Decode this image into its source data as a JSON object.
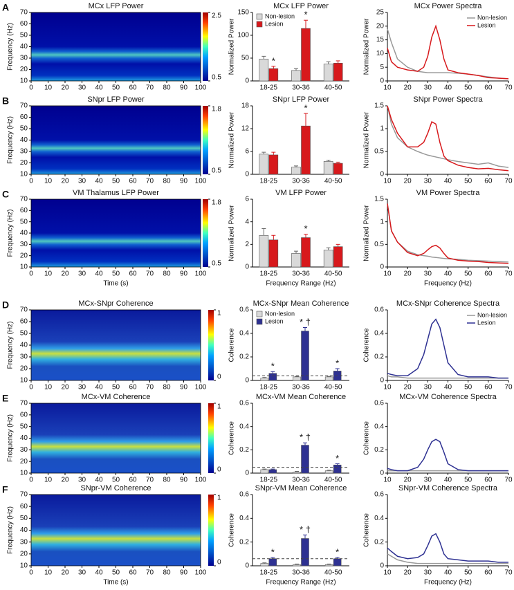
{
  "chart_data": [
    {
      "type": "heatmap",
      "panel_label": "A",
      "title": "MCx LFP Power",
      "ylabel": "Frequency (Hz)",
      "xlim": [
        0,
        100
      ],
      "xticks": [
        0,
        10,
        20,
        30,
        40,
        50,
        60,
        70,
        80,
        90,
        100
      ],
      "ylim": [
        10,
        70
      ],
      "yticks": [
        10,
        20,
        30,
        40,
        50,
        60,
        70
      ],
      "colorbar": {
        "lim": [
          0.5,
          2.5
        ],
        "ticks": [
          0.5,
          2.5
        ]
      }
    },
    {
      "type": "bar",
      "title": "MCx LFP Power",
      "ylabel": "Normalized Power",
      "categories": [
        "18-25",
        "30-36",
        "40-50"
      ],
      "series": [
        {
          "name": "Non-lesion",
          "color": "#d9d9d9",
          "values": [
            48,
            23,
            37
          ],
          "errors": [
            6,
            4,
            5
          ]
        },
        {
          "name": "Lesion",
          "color": "#d7191c",
          "values": [
            27,
            115,
            39
          ],
          "errors": [
            5,
            18,
            5
          ]
        }
      ],
      "ylim": [
        0,
        150
      ],
      "yticks": [
        0,
        50,
        100,
        150
      ],
      "annotations": [
        {
          "at": 0,
          "text": "*"
        },
        {
          "at": 1,
          "text": "*"
        }
      ],
      "legend": "upper left"
    },
    {
      "type": "line",
      "title": "MCx Power Spectra",
      "ylabel": "Normalized Power",
      "x": [
        10,
        12,
        15,
        20,
        25,
        28,
        30,
        32,
        34,
        36,
        38,
        40,
        45,
        50,
        55,
        60,
        65,
        70
      ],
      "series": [
        {
          "name": "Non-lesion",
          "color": "#999999",
          "values": [
            19,
            14,
            8,
            5,
            3.5,
            3.2,
            3,
            3,
            3,
            3,
            3,
            3,
            2.8,
            2.5,
            2,
            1.5,
            1,
            0.8
          ]
        },
        {
          "name": "Lesion",
          "color": "#d7191c",
          "values": [
            12,
            7,
            5,
            4,
            3.5,
            5,
            9,
            16,
            20,
            15,
            8,
            4,
            3,
            2.5,
            2,
            1.2,
            1,
            0.8
          ]
        }
      ],
      "xlim": [
        10,
        70
      ],
      "xticks": [
        10,
        20,
        30,
        40,
        50,
        60,
        70
      ],
      "ylim": [
        0,
        25
      ],
      "yticks": [
        0,
        5,
        10,
        15,
        20,
        25
      ],
      "legend": "upper right"
    },
    {
      "type": "heatmap",
      "panel_label": "B",
      "title": "SNpr LFP Power",
      "ylabel": "Frequency (Hz)",
      "xlim": [
        0,
        100
      ],
      "xticks": [
        0,
        10,
        20,
        30,
        40,
        50,
        60,
        70,
        80,
        90,
        100
      ],
      "ylim": [
        10,
        70
      ],
      "yticks": [
        10,
        20,
        30,
        40,
        50,
        60,
        70
      ],
      "colorbar": {
        "lim": [
          0.5,
          1.8
        ],
        "ticks": [
          0.5,
          1.8
        ]
      }
    },
    {
      "type": "bar",
      "title": "SNpr LFP Power",
      "ylabel": "Normalized Power",
      "categories": [
        "18-25",
        "30-36",
        "40-50"
      ],
      "series": [
        {
          "color": "#d9d9d9",
          "values": [
            5.3,
            1.9,
            3.4
          ],
          "errors": [
            0.5,
            0.3,
            0.3
          ]
        },
        {
          "color": "#d7191c",
          "values": [
            5.1,
            12.7,
            2.9
          ],
          "errors": [
            0.7,
            3.3,
            0.3
          ]
        }
      ],
      "ylim": [
        0,
        18
      ],
      "yticks": [
        0,
        6,
        12,
        18
      ],
      "annotations": [
        {
          "at": 1,
          "text": "*"
        }
      ]
    },
    {
      "type": "line",
      "title": "SNpr Power Spectra",
      "ylabel": "Normalized Power",
      "x": [
        10,
        12,
        15,
        20,
        25,
        28,
        30,
        32,
        34,
        36,
        38,
        40,
        45,
        50,
        55,
        60,
        65,
        70
      ],
      "series": [
        {
          "color": "#999999",
          "values": [
            1.5,
            1.1,
            0.8,
            0.6,
            0.5,
            0.45,
            0.42,
            0.4,
            0.38,
            0.36,
            0.34,
            0.32,
            0.28,
            0.25,
            0.22,
            0.25,
            0.18,
            0.15
          ]
        },
        {
          "color": "#d7191c",
          "values": [
            1.5,
            1.2,
            0.9,
            0.6,
            0.6,
            0.7,
            0.9,
            1.15,
            1.1,
            0.7,
            0.4,
            0.3,
            0.2,
            0.15,
            0.12,
            0.13,
            0.1,
            0.08
          ]
        }
      ],
      "xlim": [
        10,
        70
      ],
      "xticks": [
        10,
        20,
        30,
        40,
        50,
        60,
        70
      ],
      "ylim": [
        0,
        1.5
      ],
      "yticks": [
        0,
        0.5,
        1,
        1.5
      ]
    },
    {
      "type": "heatmap",
      "panel_label": "C",
      "title": "VM Thalamus LFP Power",
      "ylabel": "Frequency (Hz)",
      "xlabel": "Time (s)",
      "xlim": [
        0,
        100
      ],
      "xticks": [
        0,
        10,
        20,
        30,
        40,
        50,
        60,
        70,
        80,
        90,
        100
      ],
      "ylim": [
        10,
        70
      ],
      "yticks": [
        10,
        20,
        30,
        40,
        50,
        60,
        70
      ],
      "colorbar": {
        "lim": [
          0.5,
          1.8
        ],
        "ticks": [
          0.5,
          1.8
        ]
      }
    },
    {
      "type": "bar",
      "title": "VM LFP Power",
      "ylabel": "Normalized Power",
      "xlabel": "Frequency Range (Hz)",
      "categories": [
        "18-25",
        "30-36",
        "40-50"
      ],
      "series": [
        {
          "color": "#d9d9d9",
          "values": [
            2.8,
            1.2,
            1.5
          ],
          "errors": [
            0.6,
            0.2,
            0.2
          ]
        },
        {
          "color": "#d7191c",
          "values": [
            2.4,
            2.6,
            1.8
          ],
          "errors": [
            0.4,
            0.3,
            0.2
          ]
        }
      ],
      "ylim": [
        0,
        6
      ],
      "yticks": [
        0,
        2,
        4,
        6
      ],
      "annotations": [
        {
          "at": 1,
          "text": "*"
        }
      ]
    },
    {
      "type": "line",
      "title": "VM Power Spectra",
      "ylabel": "Normalized Power",
      "xlabel": "Frequency (Hz)",
      "x": [
        10,
        12,
        15,
        20,
        25,
        28,
        30,
        32,
        34,
        36,
        38,
        40,
        45,
        50,
        55,
        60,
        65,
        70
      ],
      "series": [
        {
          "color": "#999999",
          "values": [
            1.4,
            0.8,
            0.55,
            0.35,
            0.27,
            0.25,
            0.24,
            0.22,
            0.21,
            0.2,
            0.19,
            0.18,
            0.17,
            0.15,
            0.14,
            0.13,
            0.12,
            0.11
          ]
        },
        {
          "color": "#d7191c",
          "values": [
            1.4,
            0.8,
            0.55,
            0.32,
            0.25,
            0.3,
            0.38,
            0.45,
            0.48,
            0.42,
            0.3,
            0.2,
            0.15,
            0.13,
            0.12,
            0.1,
            0.09,
            0.08
          ]
        }
      ],
      "xlim": [
        10,
        70
      ],
      "xticks": [
        10,
        20,
        30,
        40,
        50,
        60,
        70
      ],
      "ylim": [
        0,
        1.5
      ],
      "yticks": [
        0,
        0.5,
        1,
        1.5
      ]
    },
    {
      "type": "heatmap",
      "panel_label": "D",
      "title": "MCx-SNpr Coherence",
      "ylabel": "Frequency (Hz)",
      "xlim": [
        0,
        100
      ],
      "xticks": [
        0,
        10,
        20,
        30,
        40,
        50,
        60,
        70,
        80,
        90,
        100
      ],
      "ylim": [
        10,
        70
      ],
      "yticks": [
        10,
        20,
        30,
        40,
        50,
        60,
        70
      ],
      "colorbar": {
        "lim": [
          0,
          1
        ],
        "ticks": [
          0,
          1
        ]
      }
    },
    {
      "type": "bar",
      "title": "MCx-SNpr Mean Coherence",
      "ylabel": "Coherence",
      "categories": [
        "18-25",
        "30-36",
        "40-50"
      ],
      "series": [
        {
          "name": "Non-lesion",
          "color": "#d9d9d9",
          "values": [
            0.02,
            0.03,
            0.03
          ],
          "errors": [
            0.005,
            0.005,
            0.005
          ]
        },
        {
          "name": "Lesion",
          "color": "#2e3192",
          "values": [
            0.06,
            0.42,
            0.08
          ],
          "errors": [
            0.015,
            0.03,
            0.02
          ]
        }
      ],
      "ylim": [
        0,
        0.6
      ],
      "yticks": [
        0,
        0.2,
        0.4,
        0.6
      ],
      "threshold": 0.04,
      "annotations": [
        {
          "at": 0,
          "text": "*"
        },
        {
          "at": 1,
          "text": "* †"
        },
        {
          "at": 2,
          "text": "*"
        }
      ],
      "legend": "upper left"
    },
    {
      "type": "line",
      "title": "MCx-SNpr Coherence Spectra",
      "ylabel": "Coherence",
      "x": [
        10,
        12,
        15,
        20,
        25,
        28,
        30,
        32,
        34,
        36,
        38,
        40,
        45,
        50,
        55,
        60,
        65,
        70
      ],
      "series": [
        {
          "name": "Non-lesion",
          "color": "#999999",
          "values": [
            0.04,
            0.03,
            0.03,
            0.02,
            0.02,
            0.02,
            0.02,
            0.02,
            0.02,
            0.02,
            0.02,
            0.02,
            0.02,
            0.02,
            0.02,
            0.02,
            0.02,
            0.02
          ]
        },
        {
          "name": "Lesion",
          "color": "#2e3192",
          "values": [
            0.06,
            0.05,
            0.04,
            0.04,
            0.1,
            0.22,
            0.35,
            0.48,
            0.52,
            0.45,
            0.3,
            0.15,
            0.05,
            0.03,
            0.03,
            0.03,
            0.02,
            0.02
          ]
        }
      ],
      "xlim": [
        10,
        70
      ],
      "xticks": [
        10,
        20,
        30,
        40,
        50,
        60,
        70
      ],
      "ylim": [
        0,
        0.6
      ],
      "yticks": [
        0,
        0.2,
        0.4,
        0.6
      ],
      "legend": "upper right"
    },
    {
      "type": "heatmap",
      "panel_label": "E",
      "title": "MCx-VM Coherence",
      "ylabel": "Frequency (Hz)",
      "xlim": [
        0,
        100
      ],
      "xticks": [
        0,
        10,
        20,
        30,
        40,
        50,
        60,
        70,
        80,
        90,
        100
      ],
      "ylim": [
        10,
        70
      ],
      "yticks": [
        10,
        20,
        30,
        40,
        50,
        60,
        70
      ],
      "colorbar": {
        "lim": [
          0,
          1
        ],
        "ticks": [
          0,
          1
        ]
      }
    },
    {
      "type": "bar",
      "title": "MCx-VM Mean Coherence",
      "ylabel": "Coherence",
      "categories": [
        "18-25",
        "30-36",
        "40-50"
      ],
      "series": [
        {
          "color": "#d9d9d9",
          "values": [
            0.03,
            0.01,
            0.02
          ],
          "errors": [
            0.005,
            0.005,
            0.005
          ]
        },
        {
          "color": "#2e3192",
          "values": [
            0.03,
            0.24,
            0.07
          ],
          "errors": [
            0.005,
            0.02,
            0.01
          ]
        }
      ],
      "ylim": [
        0,
        0.6
      ],
      "yticks": [
        0,
        0.2,
        0.4,
        0.6
      ],
      "threshold": 0.05,
      "annotations": [
        {
          "at": 1,
          "text": "* †"
        },
        {
          "at": 2,
          "text": "*"
        }
      ]
    },
    {
      "type": "line",
      "title": "MCx-VM Coherence Spectra",
      "ylabel": "Coherence",
      "x": [
        10,
        12,
        15,
        20,
        25,
        28,
        30,
        32,
        34,
        36,
        38,
        40,
        45,
        50,
        55,
        60,
        65,
        70
      ],
      "series": [
        {
          "color": "#999999",
          "values": [
            0.02,
            0.02,
            0.02,
            0.02,
            0.02,
            0.02,
            0.02,
            0.02,
            0.02,
            0.02,
            0.02,
            0.02,
            0.02,
            0.02,
            0.02,
            0.02,
            0.02,
            0.02
          ]
        },
        {
          "color": "#2e3192",
          "values": [
            0.04,
            0.03,
            0.02,
            0.02,
            0.05,
            0.12,
            0.2,
            0.27,
            0.29,
            0.27,
            0.18,
            0.08,
            0.03,
            0.02,
            0.02,
            0.02,
            0.02,
            0.02
          ]
        }
      ],
      "xlim": [
        10,
        70
      ],
      "xticks": [
        10,
        20,
        30,
        40,
        50,
        60,
        70
      ],
      "ylim": [
        0,
        0.6
      ],
      "yticks": [
        0,
        0.2,
        0.4,
        0.6
      ]
    },
    {
      "type": "heatmap",
      "panel_label": "F",
      "title": "SNpr-VM Coherence",
      "ylabel": "Frequency (Hz)",
      "xlabel": "Time (s)",
      "xlim": [
        0,
        100
      ],
      "xticks": [
        0,
        10,
        20,
        30,
        40,
        50,
        60,
        70,
        80,
        90,
        100
      ],
      "ylim": [
        10,
        70
      ],
      "yticks": [
        10,
        20,
        30,
        40,
        50,
        60,
        70
      ],
      "colorbar": {
        "lim": [
          0,
          1
        ],
        "ticks": [
          0,
          1
        ]
      }
    },
    {
      "type": "bar",
      "title": "SNpr-VM Mean Coherence",
      "ylabel": "Coherence",
      "xlabel": "Frequency Range (Hz)",
      "categories": [
        "18-25",
        "30-36",
        "40-50"
      ],
      "series": [
        {
          "color": "#d9d9d9",
          "values": [
            0.02,
            0.01,
            0.01
          ],
          "errors": [
            0.005,
            0.005,
            0.005
          ]
        },
        {
          "color": "#2e3192",
          "values": [
            0.06,
            0.23,
            0.06
          ],
          "errors": [
            0.01,
            0.03,
            0.01
          ]
        }
      ],
      "ylim": [
        0,
        0.6
      ],
      "yticks": [
        0,
        0.2,
        0.4,
        0.6
      ],
      "threshold": 0.06,
      "annotations": [
        {
          "at": 0,
          "text": "*"
        },
        {
          "at": 1,
          "text": "* †"
        },
        {
          "at": 2,
          "text": "*"
        }
      ]
    },
    {
      "type": "line",
      "title": "SNpr-VM Coherence Spectra",
      "ylabel": "Coherence",
      "xlabel": "Frequency (Hz)",
      "x": [
        10,
        12,
        15,
        20,
        25,
        28,
        30,
        32,
        34,
        36,
        38,
        40,
        45,
        50,
        55,
        60,
        65,
        70
      ],
      "series": [
        {
          "color": "#999999",
          "values": [
            0.1,
            0.08,
            0.05,
            0.03,
            0.02,
            0.02,
            0.02,
            0.02,
            0.02,
            0.02,
            0.02,
            0.02,
            0.02,
            0.02,
            0.02,
            0.02,
            0.02,
            0.02
          ]
        },
        {
          "color": "#2e3192",
          "values": [
            0.15,
            0.12,
            0.08,
            0.06,
            0.07,
            0.1,
            0.17,
            0.25,
            0.27,
            0.2,
            0.1,
            0.06,
            0.05,
            0.04,
            0.04,
            0.04,
            0.03,
            0.03
          ]
        }
      ],
      "xlim": [
        10,
        70
      ],
      "xticks": [
        10,
        20,
        30,
        40,
        50,
        60,
        70
      ],
      "ylim": [
        0,
        0.6
      ],
      "yticks": [
        0,
        0.2,
        0.4,
        0.6
      ]
    }
  ]
}
